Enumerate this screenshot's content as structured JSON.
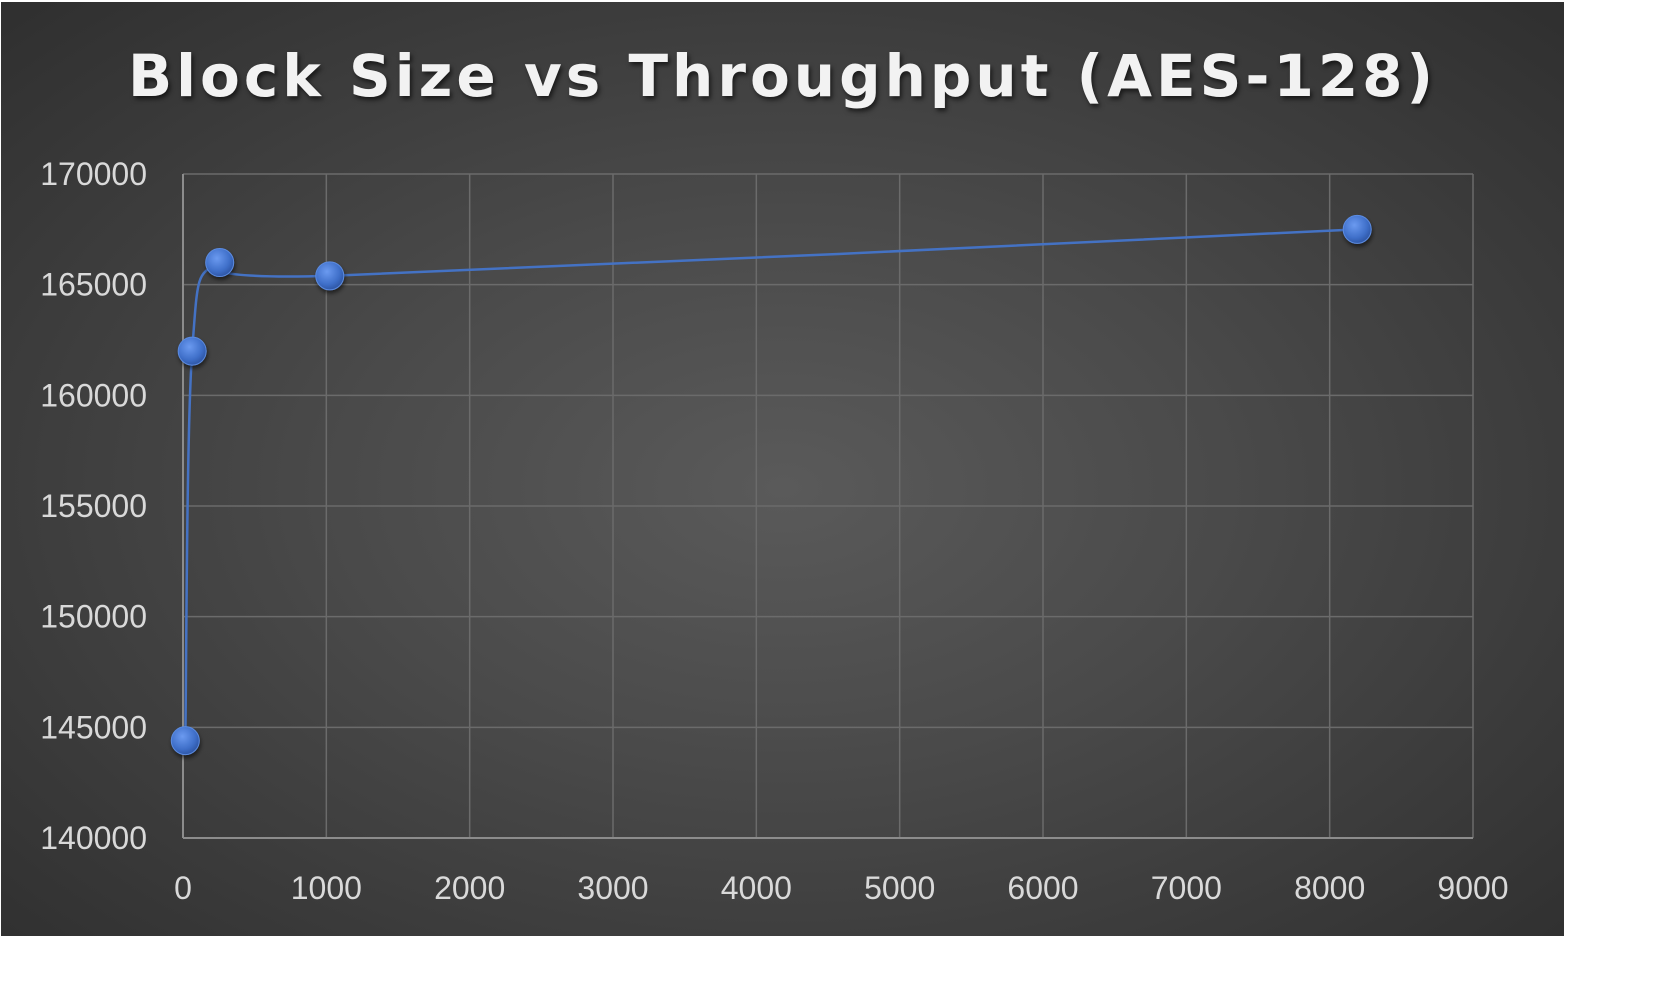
{
  "chart_data": {
    "type": "scatter",
    "title": "Block Size vs Throughput (AES-128)",
    "xlabel": "",
    "ylabel": "",
    "xlim": [
      0,
      9000
    ],
    "ylim": [
      140000,
      170000
    ],
    "x_ticks": [
      "0",
      "1000",
      "2000",
      "3000",
      "4000",
      "5000",
      "6000",
      "7000",
      "8000",
      "9000"
    ],
    "y_ticks": [
      "140000",
      "145000",
      "150000",
      "155000",
      "160000",
      "165000",
      "170000"
    ],
    "grid": true,
    "legend": "none",
    "smooth_lines": true,
    "markers": true,
    "series": [
      {
        "x": [
          16,
          64,
          256,
          1024,
          8192
        ],
        "y": [
          144400,
          162000,
          166000,
          165400,
          167500
        ]
      }
    ],
    "colors": {
      "series": "#4472c4",
      "marker": "#4a7fd8",
      "grid": "#6b6b6b",
      "text": "#d9d9d9",
      "title": "#f2f2f2"
    }
  }
}
